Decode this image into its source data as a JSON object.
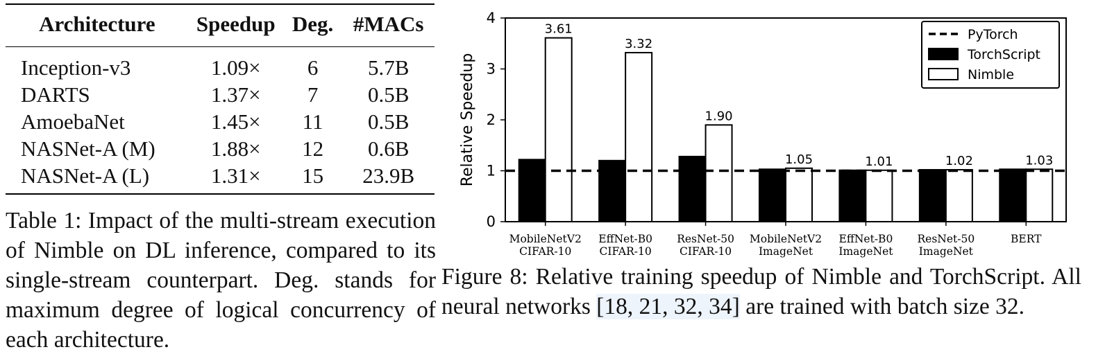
{
  "table": {
    "headers": [
      "Architecture",
      "Speedup",
      "Deg.",
      "#MACs"
    ],
    "rows": [
      {
        "arch": "Inception-v3",
        "speedup": "1.09×",
        "deg": "6",
        "macs": "5.7B"
      },
      {
        "arch": "DARTS",
        "speedup": "1.37×",
        "deg": "7",
        "macs": "0.5B"
      },
      {
        "arch": "AmoebaNet",
        "speedup": "1.45×",
        "deg": "11",
        "macs": "0.5B"
      },
      {
        "arch": "NASNet-A (M)",
        "speedup": "1.88×",
        "deg": "12",
        "macs": "0.6B"
      },
      {
        "arch": "NASNet-A (L)",
        "speedup": "1.31×",
        "deg": "15",
        "macs": "23.9B"
      }
    ],
    "caption": "Table 1: Impact of the multi-stream execution of Nimble on DL inference, compared to its single-stream counterpart. Deg. stands for maximum degree of logical concurrency of each architecture."
  },
  "figure": {
    "caption_before": "Figure 8: Relative training speedup of Nimble and TorchScript. All neural networks ",
    "caption_cite": "[18, 21, 32, 34]",
    "caption_after": " are trained with batch size 32."
  },
  "chart_data": {
    "type": "bar",
    "categories": [
      [
        "MobileNetV2",
        "CIFAR-10"
      ],
      [
        "EffNet-B0",
        "CIFAR-10"
      ],
      [
        "ResNet-50",
        "CIFAR-10"
      ],
      [
        "MobileNetV2",
        "ImageNet"
      ],
      [
        "EffNet-B0",
        "ImageNet"
      ],
      [
        "ResNet-50",
        "ImageNet"
      ],
      [
        "BERT"
      ]
    ],
    "series": [
      {
        "name": "TorchScript",
        "values": [
          1.22,
          1.2,
          1.28,
          1.03,
          1.01,
          1.02,
          1.03
        ],
        "color": "#000000"
      },
      {
        "name": "Nimble",
        "values": [
          3.61,
          3.32,
          1.9,
          1.05,
          1.01,
          1.02,
          1.03
        ],
        "color": "#ffffff"
      }
    ],
    "data_labels": [
      "3.61",
      "3.32",
      "1.90",
      "1.05",
      "1.01",
      "1.02",
      "1.03"
    ],
    "baseline": {
      "name": "PyTorch",
      "value": 1,
      "style": "dashed"
    },
    "title": "",
    "xlabel": "",
    "ylabel": "Relative Speedup",
    "ylim": [
      0,
      4
    ],
    "yticks": [
      0,
      1,
      2,
      3,
      4
    ],
    "grid": false,
    "legend_position": "top-right"
  }
}
